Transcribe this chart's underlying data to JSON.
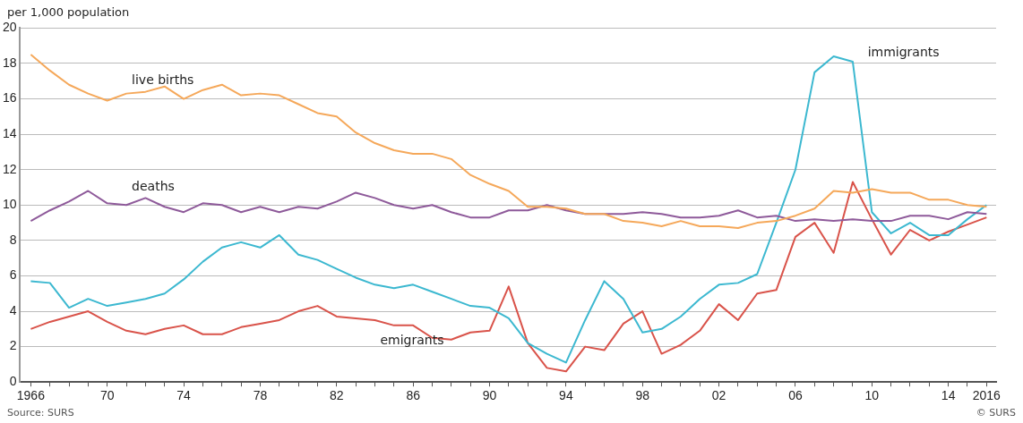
{
  "chart_data": {
    "type": "line",
    "ylabel": "per 1,000 population",
    "annotations": [
      "Source: SURS",
      "© SURS"
    ],
    "x": [
      1966,
      1967,
      1968,
      1969,
      1970,
      1971,
      1972,
      1973,
      1974,
      1975,
      1976,
      1977,
      1978,
      1979,
      1980,
      1981,
      1982,
      1983,
      1984,
      1985,
      1986,
      1987,
      1988,
      1989,
      1990,
      1991,
      1992,
      1993,
      1994,
      1995,
      1996,
      1997,
      1998,
      1999,
      2000,
      2001,
      2002,
      2003,
      2004,
      2005,
      2006,
      2007,
      2008,
      2009,
      2010,
      2011,
      2012,
      2013,
      2014,
      2015,
      2016
    ],
    "series": [
      {
        "name": "live births",
        "color": "#f5a85a",
        "values": [
          18.5,
          17.6,
          16.8,
          16.3,
          15.9,
          16.3,
          16.4,
          16.7,
          16.0,
          16.5,
          16.8,
          16.2,
          16.3,
          16.2,
          15.7,
          15.2,
          15.0,
          14.1,
          13.5,
          13.1,
          12.9,
          12.9,
          12.6,
          11.7,
          11.2,
          10.8,
          9.9,
          9.9,
          9.8,
          9.5,
          9.5,
          9.1,
          9.0,
          8.8,
          9.1,
          8.8,
          8.8,
          8.7,
          9.0,
          9.1,
          9.4,
          9.8,
          10.8,
          10.7,
          10.9,
          10.7,
          10.7,
          10.3,
          10.3,
          10.0,
          9.9
        ]
      },
      {
        "name": "deaths",
        "color": "#8e5a9a",
        "values": [
          9.1,
          9.7,
          10.2,
          10.8,
          10.1,
          10.0,
          10.4,
          9.9,
          9.6,
          10.1,
          10.0,
          9.6,
          9.9,
          9.6,
          9.9,
          9.8,
          10.2,
          10.7,
          10.4,
          10.0,
          9.8,
          10.0,
          9.6,
          9.3,
          9.3,
          9.7,
          9.7,
          10.0,
          9.7,
          9.5,
          9.5,
          9.5,
          9.6,
          9.5,
          9.3,
          9.3,
          9.4,
          9.7,
          9.3,
          9.4,
          9.1,
          9.2,
          9.1,
          9.2,
          9.1,
          9.1,
          9.4,
          9.4,
          9.2,
          9.6,
          9.5
        ]
      },
      {
        "name": "immigrants",
        "color": "#3cb8d0",
        "values": [
          5.7,
          5.6,
          4.2,
          4.7,
          4.3,
          4.5,
          4.7,
          5.0,
          5.8,
          6.8,
          7.6,
          7.9,
          7.6,
          8.3,
          7.2,
          6.9,
          6.4,
          5.9,
          5.5,
          5.3,
          5.5,
          5.1,
          4.7,
          4.3,
          4.2,
          3.6,
          2.2,
          1.6,
          1.1,
          3.5,
          5.7,
          4.7,
          2.8,
          3.0,
          3.7,
          4.7,
          5.5,
          5.6,
          6.1,
          9.0,
          12.0,
          17.5,
          18.4,
          18.1,
          9.6,
          8.4,
          9.0,
          8.3,
          8.3,
          9.2,
          10.0
        ]
      },
      {
        "name": "emigrants",
        "color": "#d9534a",
        "values": [
          3.0,
          3.4,
          3.7,
          4.0,
          3.4,
          2.9,
          2.7,
          3.0,
          3.2,
          2.7,
          2.7,
          3.1,
          3.3,
          3.5,
          4.0,
          4.3,
          3.7,
          3.6,
          3.5,
          3.2,
          3.2,
          2.5,
          2.4,
          2.8,
          2.9,
          5.4,
          2.2,
          0.8,
          0.6,
          2.0,
          1.8,
          3.3,
          4.0,
          1.6,
          2.1,
          2.9,
          4.4,
          3.5,
          5.0,
          5.2,
          8.2,
          9.0,
          7.3,
          11.3,
          9.2,
          7.2,
          8.6,
          8.0,
          8.5,
          8.9,
          9.3
        ]
      }
    ],
    "xlim": [
      1965.4,
      2016.5
    ],
    "xticks": [
      {
        "value": 1966,
        "label": "1966"
      },
      {
        "value": 1967,
        "label": null
      },
      {
        "value": 1968,
        "label": null
      },
      {
        "value": 1969,
        "label": null
      },
      {
        "value": 1970,
        "label": "70"
      },
      {
        "value": 1971,
        "label": null
      },
      {
        "value": 1972,
        "label": null
      },
      {
        "value": 1973,
        "label": null
      },
      {
        "value": 1974,
        "label": "74"
      },
      {
        "value": 1975,
        "label": null
      },
      {
        "value": 1976,
        "label": null
      },
      {
        "value": 1977,
        "label": null
      },
      {
        "value": 1978,
        "label": "78"
      },
      {
        "value": 1979,
        "label": null
      },
      {
        "value": 1980,
        "label": null
      },
      {
        "value": 1981,
        "label": null
      },
      {
        "value": 1982,
        "label": "82"
      },
      {
        "value": 1983,
        "label": null
      },
      {
        "value": 1984,
        "label": null
      },
      {
        "value": 1985,
        "label": null
      },
      {
        "value": 1986,
        "label": "86"
      },
      {
        "value": 1987,
        "label": null
      },
      {
        "value": 1988,
        "label": null
      },
      {
        "value": 1989,
        "label": null
      },
      {
        "value": 1990,
        "label": "90"
      },
      {
        "value": 1991,
        "label": null
      },
      {
        "value": 1992,
        "label": null
      },
      {
        "value": 1993,
        "label": null
      },
      {
        "value": 1994,
        "label": "94"
      },
      {
        "value": 1995,
        "label": null
      },
      {
        "value": 1996,
        "label": null
      },
      {
        "value": 1997,
        "label": null
      },
      {
        "value": 1998,
        "label": "98"
      },
      {
        "value": 1999,
        "label": null
      },
      {
        "value": 2000,
        "label": null
      },
      {
        "value": 2001,
        "label": null
      },
      {
        "value": 2002,
        "label": "02"
      },
      {
        "value": 2003,
        "label": null
      },
      {
        "value": 2004,
        "label": null
      },
      {
        "value": 2005,
        "label": null
      },
      {
        "value": 2006,
        "label": "06"
      },
      {
        "value": 2007,
        "label": null
      },
      {
        "value": 2008,
        "label": null
      },
      {
        "value": 2009,
        "label": null
      },
      {
        "value": 2010,
        "label": "10"
      },
      {
        "value": 2011,
        "label": null
      },
      {
        "value": 2012,
        "label": null
      },
      {
        "value": 2013,
        "label": null
      },
      {
        "value": 2014,
        "label": "14"
      },
      {
        "value": 2015,
        "label": null
      },
      {
        "value": 2016,
        "label": "2016"
      }
    ],
    "ylim": [
      0,
      20
    ],
    "yticks": [
      0,
      2,
      4,
      6,
      8,
      10,
      12,
      14,
      16,
      18,
      20
    ],
    "grid": "y",
    "legend": false,
    "marker": "none",
    "line_style": "solid"
  }
}
